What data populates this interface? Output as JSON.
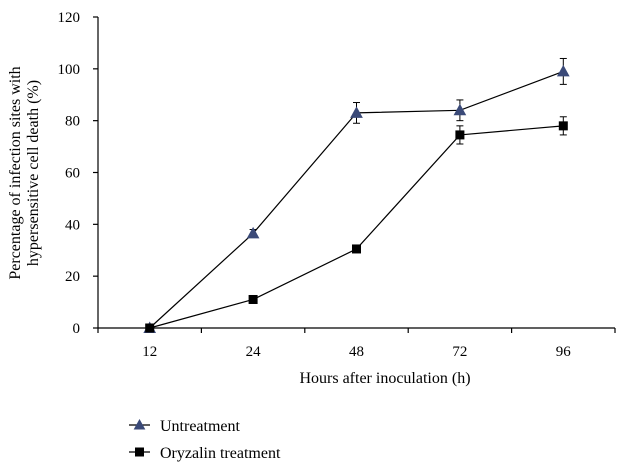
{
  "chart_data": {
    "type": "line",
    "xlabel": "Hours after inoculation (h)",
    "ylabel_lines": [
      "Percentage of infection sites with",
      "hypersensitive cell death (%)"
    ],
    "categories": [
      "12",
      "24",
      "48",
      "72",
      "96"
    ],
    "ylim": [
      0,
      120
    ],
    "yticks": [
      "0",
      "20",
      "40",
      "60",
      "80",
      "100",
      "120"
    ],
    "grid": false,
    "legend_position": "bottom-left",
    "series": [
      {
        "name": "Untreatment",
        "marker": "triangle",
        "marker_fill": "#3b4a78",
        "values": [
          0,
          36.5,
          83,
          84,
          99
        ],
        "errors": [
          0,
          1.5,
          4,
          4,
          5
        ]
      },
      {
        "name": "Oryzalin treatment",
        "marker": "square",
        "marker_fill": "#000000",
        "values": [
          0,
          11,
          30.5,
          74.5,
          78
        ],
        "errors": [
          0,
          0.5,
          0.5,
          3.5,
          3.5
        ]
      }
    ]
  }
}
